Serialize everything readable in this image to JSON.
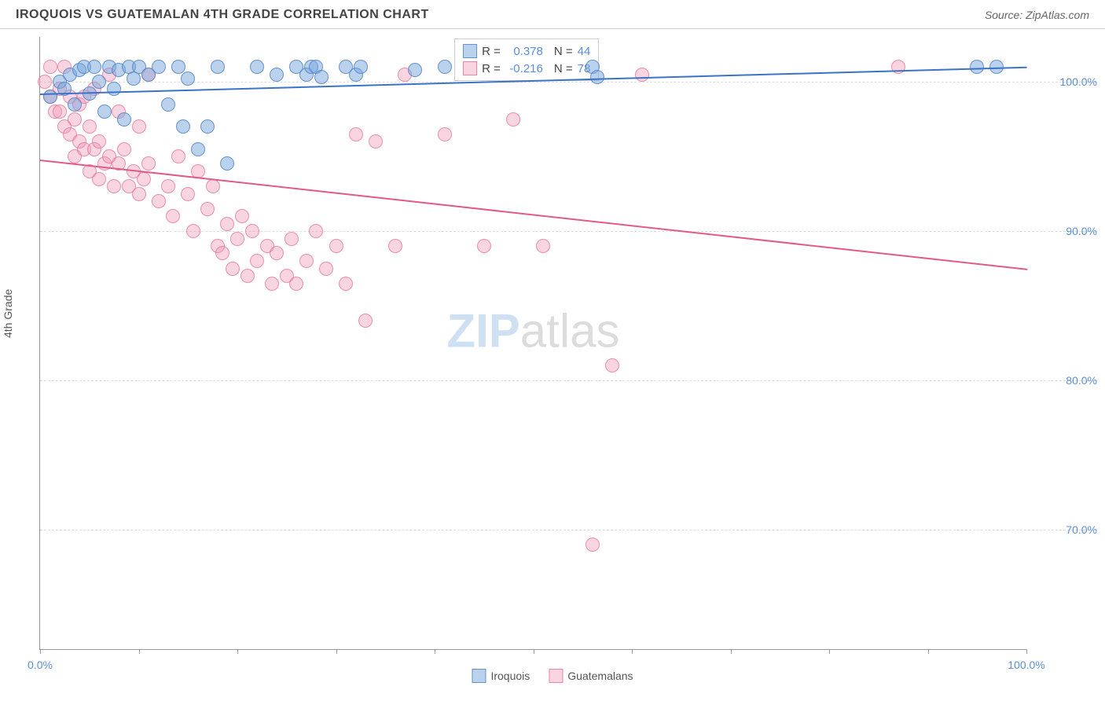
{
  "header": {
    "title": "IROQUOIS VS GUATEMALAN 4TH GRADE CORRELATION CHART",
    "source": "Source: ZipAtlas.com"
  },
  "chart": {
    "type": "scatter",
    "y_axis_label": "4th Grade",
    "xlim": [
      0,
      100
    ],
    "ylim": [
      62,
      103
    ],
    "x_ticks": [
      0,
      10,
      20,
      30,
      40,
      50,
      60,
      70,
      80,
      90,
      100
    ],
    "x_tick_labels": {
      "0": "0.0%",
      "100": "100.0%"
    },
    "y_ticks": [
      70,
      80,
      90,
      100
    ],
    "y_tick_labels": {
      "70": "70.0%",
      "80": "80.0%",
      "90": "90.0%",
      "100": "100.0%"
    },
    "grid_color": "#dddddd",
    "background_color": "#ffffff",
    "watermark": {
      "zip": "ZIP",
      "atlas": "atlas"
    },
    "series": {
      "iroquois": {
        "label": "Iroquois",
        "color_fill": "rgba(120,165,220,0.5)",
        "color_border": "rgba(80,130,200,0.8)",
        "marker_size": 18,
        "r_value": "0.378",
        "n_value": "44",
        "trend": {
          "x1": 0,
          "y1": 99.2,
          "x2": 100,
          "y2": 101.0,
          "color": "#3b73c7"
        },
        "points": [
          [
            1,
            99
          ],
          [
            2,
            100
          ],
          [
            2.5,
            99.5
          ],
          [
            3,
            100.5
          ],
          [
            3.5,
            98.5
          ],
          [
            4,
            100.8
          ],
          [
            4.5,
            101
          ],
          [
            5,
            99.2
          ],
          [
            5.5,
            101
          ],
          [
            6,
            100
          ],
          [
            6.5,
            98
          ],
          [
            7,
            101
          ],
          [
            7.5,
            99.5
          ],
          [
            8,
            100.8
          ],
          [
            8.5,
            97.5
          ],
          [
            9,
            101
          ],
          [
            9.5,
            100.2
          ],
          [
            10,
            101
          ],
          [
            11,
            100.5
          ],
          [
            12,
            101
          ],
          [
            13,
            98.5
          ],
          [
            14,
            101
          ],
          [
            14.5,
            97
          ],
          [
            15,
            100.2
          ],
          [
            16,
            95.5
          ],
          [
            17,
            97
          ],
          [
            18,
            101
          ],
          [
            19,
            94.5
          ],
          [
            22,
            101
          ],
          [
            24,
            100.5
          ],
          [
            26,
            101
          ],
          [
            27,
            100.5
          ],
          [
            27.5,
            101
          ],
          [
            28,
            101
          ],
          [
            28.5,
            100.3
          ],
          [
            31,
            101
          ],
          [
            32,
            100.5
          ],
          [
            32.5,
            101
          ],
          [
            38,
            100.8
          ],
          [
            41,
            101
          ],
          [
            56,
            101
          ],
          [
            56.5,
            100.3
          ],
          [
            95,
            101
          ],
          [
            97,
            101
          ]
        ]
      },
      "guatemalans": {
        "label": "Guatemalans",
        "color_fill": "rgba(240,150,180,0.4)",
        "color_border": "rgba(230,110,150,0.7)",
        "marker_size": 18,
        "r_value": "-0.216",
        "n_value": "78",
        "trend": {
          "x1": 0,
          "y1": 94.8,
          "x2": 100,
          "y2": 87.5,
          "color": "#e15a8a"
        },
        "points": [
          [
            0.5,
            100
          ],
          [
            1,
            99
          ],
          [
            1.5,
            98
          ],
          [
            1,
            101
          ],
          [
            2,
            99.5
          ],
          [
            2,
            98
          ],
          [
            2.5,
            97
          ],
          [
            2.5,
            101
          ],
          [
            3,
            96.5
          ],
          [
            3,
            99
          ],
          [
            3.5,
            97.5
          ],
          [
            3.5,
            95
          ],
          [
            4,
            98.5
          ],
          [
            4,
            96
          ],
          [
            4.5,
            95.5
          ],
          [
            4.5,
            99
          ],
          [
            5,
            94
          ],
          [
            5,
            97
          ],
          [
            5.5,
            95.5
          ],
          [
            5.5,
            99.5
          ],
          [
            6,
            93.5
          ],
          [
            6,
            96
          ],
          [
            6.5,
            94.5
          ],
          [
            7,
            95
          ],
          [
            7,
            100.5
          ],
          [
            7.5,
            93
          ],
          [
            8,
            94.5
          ],
          [
            8,
            98
          ],
          [
            8.5,
            95.5
          ],
          [
            9,
            93
          ],
          [
            9.5,
            94
          ],
          [
            10,
            92.5
          ],
          [
            10,
            97
          ],
          [
            10.5,
            93.5
          ],
          [
            11,
            94.5
          ],
          [
            11,
            100.5
          ],
          [
            12,
            92
          ],
          [
            13,
            93
          ],
          [
            13.5,
            91
          ],
          [
            14,
            95
          ],
          [
            15,
            92.5
          ],
          [
            15.5,
            90
          ],
          [
            16,
            94
          ],
          [
            17,
            91.5
          ],
          [
            17.5,
            93
          ],
          [
            18,
            89
          ],
          [
            18.5,
            88.5
          ],
          [
            19,
            90.5
          ],
          [
            19.5,
            87.5
          ],
          [
            20,
            89.5
          ],
          [
            20.5,
            91
          ],
          [
            21,
            87
          ],
          [
            21.5,
            90
          ],
          [
            22,
            88
          ],
          [
            23,
            89
          ],
          [
            23.5,
            86.5
          ],
          [
            24,
            88.5
          ],
          [
            25,
            87
          ],
          [
            25.5,
            89.5
          ],
          [
            26,
            86.5
          ],
          [
            27,
            88
          ],
          [
            28,
            90
          ],
          [
            29,
            87.5
          ],
          [
            30,
            89
          ],
          [
            31,
            86.5
          ],
          [
            32,
            96.5
          ],
          [
            33,
            84
          ],
          [
            34,
            96
          ],
          [
            36,
            89
          ],
          [
            37,
            100.5
          ],
          [
            41,
            96.5
          ],
          [
            45,
            89
          ],
          [
            48,
            97.5
          ],
          [
            51,
            89
          ],
          [
            56,
            69
          ],
          [
            58,
            81
          ],
          [
            61,
            100.5
          ],
          [
            87,
            101
          ]
        ]
      }
    },
    "legend_box": {
      "r_label": "R =",
      "n_label": "N ="
    },
    "bottom_legend": {
      "iroquois": "Iroquois",
      "guatemalans": "Guatemalans"
    }
  }
}
